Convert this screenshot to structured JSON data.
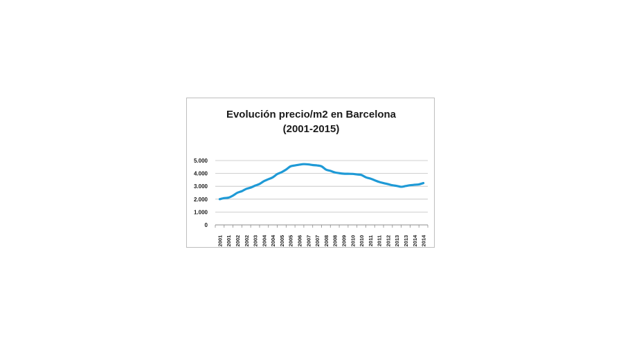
{
  "chart_data": {
    "type": "line",
    "title_lines": [
      "Evolución precio/m2 en Barcelona",
      "(2001-2015)"
    ],
    "xlabel": "",
    "ylabel": "",
    "ylim": [
      0,
      5000
    ],
    "yticks": [
      0,
      1000,
      2000,
      3000,
      4000,
      5000
    ],
    "ytick_labels": [
      "0",
      "1.000",
      "2.000",
      "3.000",
      "4.000",
      "5.000"
    ],
    "categories": [
      "2001",
      "2001",
      "2002",
      "2002",
      "2003",
      "2004",
      "2004",
      "2005",
      "2005",
      "2006",
      "2007",
      "2007",
      "2008",
      "2008",
      "2009",
      "2010",
      "2010",
      "2011",
      "2011",
      "2012",
      "2013",
      "2013",
      "2014",
      "2014"
    ],
    "grid": true,
    "legend": "none",
    "series": [
      {
        "name": "precio/m2",
        "color": "#1f9ad6",
        "x": [
          0,
          0.5,
          1,
          1.5,
          2,
          2.5,
          3,
          3.5,
          4,
          4.5,
          5,
          5.5,
          6,
          6.5,
          7,
          7.5,
          8,
          8.5,
          9,
          9.5,
          10,
          10.5,
          11,
          11.5,
          12,
          12.5,
          13,
          13.5,
          14,
          14.5,
          15,
          15.5,
          16,
          16.5,
          17,
          17.5,
          18,
          18.5,
          19,
          19.5,
          20,
          20.5,
          21,
          21.5,
          22,
          22.5,
          23
        ],
        "values": [
          2000,
          2080,
          2120,
          2280,
          2500,
          2620,
          2800,
          2900,
          3050,
          3180,
          3400,
          3550,
          3700,
          3950,
          4100,
          4300,
          4550,
          4620,
          4680,
          4720,
          4700,
          4650,
          4620,
          4550,
          4300,
          4200,
          4080,
          4020,
          3980,
          3970,
          3960,
          3920,
          3880,
          3700,
          3600,
          3470,
          3340,
          3250,
          3170,
          3080,
          3030,
          2960,
          3020,
          3080,
          3120,
          3150,
          3250
        ]
      }
    ]
  }
}
